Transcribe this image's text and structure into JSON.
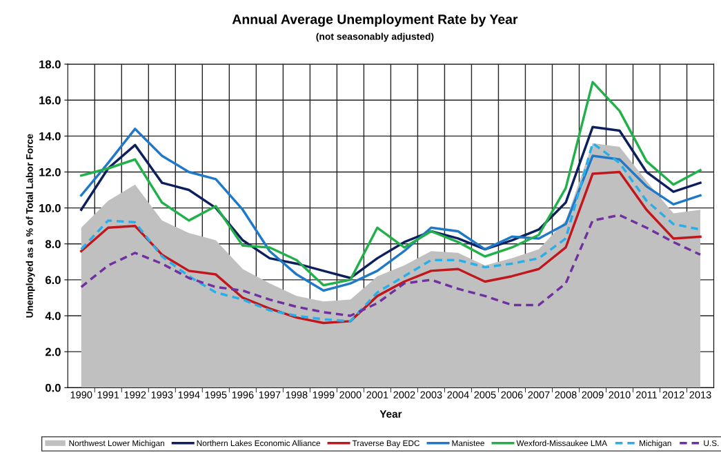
{
  "chart_data": {
    "type": "line",
    "title": "Annual Average Unemployment Rate by Year",
    "subtitle": "(not seasonably adjusted)",
    "xlabel": "Year",
    "ylabel": "Unemployed as a % of Total Labor Force",
    "categories": [
      "1990",
      "1991",
      "1992",
      "1993",
      "1994",
      "1995",
      "1996",
      "1997",
      "1998",
      "1999",
      "2000",
      "2001",
      "2002",
      "2003",
      "2004",
      "2005",
      "2006",
      "2007",
      "2008",
      "2009",
      "2010",
      "2011",
      "2012",
      "2013"
    ],
    "series": [
      {
        "name": "Northwest Lower Michigan",
        "type": "area",
        "color": "#c0c0c0",
        "values": [
          8.9,
          10.4,
          11.3,
          9.3,
          8.6,
          8.2,
          6.6,
          5.8,
          5.1,
          4.8,
          4.9,
          6.2,
          6.8,
          7.6,
          7.5,
          6.8,
          7.2,
          7.7,
          9.3,
          13.6,
          13.4,
          11.5,
          9.7,
          9.9
        ]
      },
      {
        "name": "Northern Lakes Economic Alliance",
        "color": "#0d1f5c",
        "line_style": "solid",
        "values": [
          9.9,
          12.2,
          13.5,
          11.4,
          11.0,
          10.0,
          8.2,
          7.2,
          6.9,
          6.5,
          6.1,
          7.2,
          8.1,
          8.7,
          8.3,
          7.7,
          8.2,
          8.8,
          10.3,
          14.5,
          14.3,
          12.0,
          10.9,
          11.4
        ]
      },
      {
        "name": "Traverse Bay EDC",
        "color": "#c0161c",
        "line_style": "solid",
        "values": [
          7.6,
          8.9,
          9.0,
          7.4,
          6.5,
          6.3,
          5.0,
          4.4,
          3.9,
          3.6,
          3.7,
          5.1,
          5.9,
          6.5,
          6.6,
          5.9,
          6.2,
          6.6,
          7.8,
          11.9,
          12.0,
          9.9,
          8.3,
          8.4
        ]
      },
      {
        "name": "Manistee",
        "color": "#1f78c8",
        "line_style": "solid",
        "values": [
          10.7,
          12.5,
          14.4,
          12.9,
          12.0,
          11.6,
          9.9,
          7.6,
          6.3,
          5.4,
          5.8,
          6.5,
          7.6,
          8.9,
          8.7,
          7.7,
          8.4,
          8.3,
          9.1,
          12.9,
          12.7,
          11.2,
          10.2,
          10.7
        ]
      },
      {
        "name": "Wexford-Missaukee LMA",
        "color": "#22b04b",
        "line_style": "solid",
        "values": [
          11.8,
          12.2,
          12.7,
          10.3,
          9.3,
          10.1,
          7.9,
          7.8,
          7.1,
          5.7,
          6.0,
          8.9,
          7.8,
          8.7,
          8.1,
          7.3,
          7.8,
          8.5,
          11.1,
          17.0,
          15.4,
          12.6,
          11.3,
          12.1
        ]
      },
      {
        "name": "Michigan",
        "color": "#29aee8",
        "line_style": "dashed",
        "values": [
          7.7,
          9.3,
          9.2,
          7.3,
          6.2,
          5.3,
          4.9,
          4.3,
          4.0,
          3.8,
          3.7,
          5.3,
          6.2,
          7.1,
          7.1,
          6.7,
          6.9,
          7.2,
          8.3,
          13.6,
          12.5,
          10.4,
          9.1,
          8.8
        ]
      },
      {
        "name": "U.S.",
        "color": "#7030a0",
        "line_style": "dashed",
        "values": [
          5.6,
          6.8,
          7.5,
          6.9,
          6.1,
          5.6,
          5.4,
          4.9,
          4.5,
          4.2,
          4.0,
          4.7,
          5.8,
          6.0,
          5.5,
          5.1,
          4.6,
          4.6,
          5.8,
          9.3,
          9.6,
          8.9,
          8.1,
          7.4
        ]
      }
    ],
    "ylim": [
      0,
      18
    ],
    "yticks": [
      {
        "value": 0,
        "label": "0.0"
      },
      {
        "value": 2,
        "label": "2.0"
      },
      {
        "value": 4,
        "label": "4.0"
      },
      {
        "value": 6,
        "label": "6.0"
      },
      {
        "value": 8,
        "label": "8.0"
      },
      {
        "value": 10,
        "label": "10.0"
      },
      {
        "value": 12,
        "label": "12.0"
      },
      {
        "value": 14,
        "label": "14.0"
      },
      {
        "value": 16,
        "label": "16.0"
      },
      {
        "value": 18,
        "label": "18.0"
      }
    ],
    "grid": true,
    "legend": "bottom",
    "marker": "none"
  }
}
